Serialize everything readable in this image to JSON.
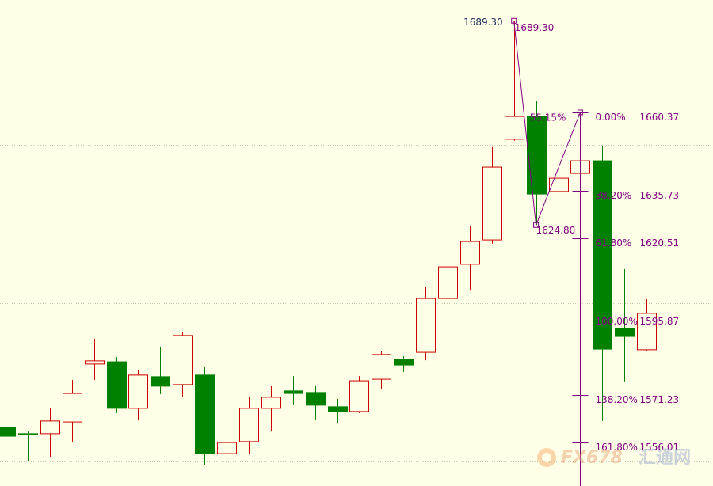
{
  "chart_data": {
    "type": "candlestick",
    "ylim": [
      1542.37,
      1695.87
    ],
    "grid_lines": [
      1550,
      1600,
      1650
    ],
    "up_color": "#cc0000",
    "down_color": "#008000",
    "background": "#ffffe8",
    "candles": [
      {
        "open": 1560.9,
        "high": 1568.9,
        "low": 1549.6,
        "close": 1558.1
      },
      {
        "open": 1558.9,
        "high": 1559.6,
        "low": 1550.1,
        "close": 1558.6
      },
      {
        "open": 1558.9,
        "high": 1567.1,
        "low": 1551.6,
        "close": 1562.9
      },
      {
        "open": 1562.6,
        "high": 1575.9,
        "low": 1556.4,
        "close": 1571.6
      },
      {
        "open": 1580.9,
        "high": 1588.9,
        "low": 1575.9,
        "close": 1581.9
      },
      {
        "open": 1581.6,
        "high": 1583.1,
        "low": 1565.4,
        "close": 1566.9
      },
      {
        "open": 1566.9,
        "high": 1578.9,
        "low": 1563.1,
        "close": 1577.4
      },
      {
        "open": 1576.9,
        "high": 1586.4,
        "low": 1571.4,
        "close": 1573.9
      },
      {
        "open": 1574.4,
        "high": 1590.9,
        "low": 1570.6,
        "close": 1589.9
      },
      {
        "open": 1577.4,
        "high": 1579.9,
        "low": 1549.1,
        "close": 1552.6
      },
      {
        "open": 1552.6,
        "high": 1562.9,
        "low": 1547.1,
        "close": 1556.1
      },
      {
        "open": 1556.4,
        "high": 1570.4,
        "low": 1552.4,
        "close": 1566.9
      },
      {
        "open": 1566.9,
        "high": 1573.9,
        "low": 1559.6,
        "close": 1570.4
      },
      {
        "open": 1572.4,
        "high": 1577.1,
        "low": 1567.9,
        "close": 1571.6
      },
      {
        "open": 1571.9,
        "high": 1573.9,
        "low": 1563.4,
        "close": 1567.9
      },
      {
        "open": 1567.4,
        "high": 1569.9,
        "low": 1562.1,
        "close": 1565.9
      },
      {
        "open": 1565.9,
        "high": 1577.1,
        "low": 1565.4,
        "close": 1575.6
      },
      {
        "open": 1576.1,
        "high": 1585.1,
        "low": 1572.9,
        "close": 1583.9
      },
      {
        "open": 1582.4,
        "high": 1583.4,
        "low": 1578.4,
        "close": 1580.6
      },
      {
        "open": 1584.6,
        "high": 1605.4,
        "low": 1582.1,
        "close": 1601.6
      },
      {
        "open": 1601.6,
        "high": 1613.4,
        "low": 1599.1,
        "close": 1611.6
      },
      {
        "open": 1612.4,
        "high": 1624.4,
        "low": 1604.1,
        "close": 1619.6
      },
      {
        "open": 1620.1,
        "high": 1649.4,
        "low": 1618.9,
        "close": 1643.1
      },
      {
        "open": 1651.9,
        "high": 1689.3,
        "low": 1651.4,
        "close": 1659.1
      },
      {
        "open": 1659.1,
        "high": 1664.1,
        "low": 1624.8,
        "close": 1634.6
      },
      {
        "open": 1635.4,
        "high": 1648.4,
        "low": 1624.4,
        "close": 1639.6
      },
      {
        "open": 1641.1,
        "high": 1660.37,
        "low": 1640.4,
        "close": 1645.1
      },
      {
        "open": 1645.1,
        "high": 1649.9,
        "low": 1562.9,
        "close": 1585.6
      },
      {
        "open": 1592.1,
        "high": 1610.9,
        "low": 1575.4,
        "close": 1589.6
      },
      {
        "open": 1585.4,
        "high": 1601.4,
        "low": 1584.9,
        "close": 1596.9
      }
    ],
    "zigzag": {
      "color": "#800080",
      "points": [
        {
          "index": 23,
          "value": 1689.3,
          "label": "1689.30"
        },
        {
          "index": 24,
          "value": 1624.8,
          "label": "1624.80"
        },
        {
          "index": 26,
          "value": 1660.37
        }
      ],
      "retracement": {
        "value": 55.15,
        "label": "55.15%"
      }
    },
    "fibonacci": {
      "color": "#800080",
      "anchor_index": 26,
      "levels": [
        {
          "ratio": {
            "value": 0,
            "label": "0.00%"
          },
          "price": 1660.37
        },
        {
          "ratio": {
            "value": 38.2,
            "label": "38.20%"
          },
          "price": 1635.73
        },
        {
          "ratio": {
            "value": 61.8,
            "label": "61.80%"
          },
          "price": 1620.51
        },
        {
          "ratio": {
            "value": 100,
            "label": "100.00%"
          },
          "price": 1595.87
        },
        {
          "ratio": {
            "value": 138.2,
            "label": "138.20%"
          },
          "price": 1571.23
        },
        {
          "ratio": {
            "value": 161.8,
            "label": "161.80%"
          },
          "price": 1556.01
        }
      ]
    },
    "watermark": {
      "brand": "FX678",
      "name": "汇通网"
    }
  }
}
